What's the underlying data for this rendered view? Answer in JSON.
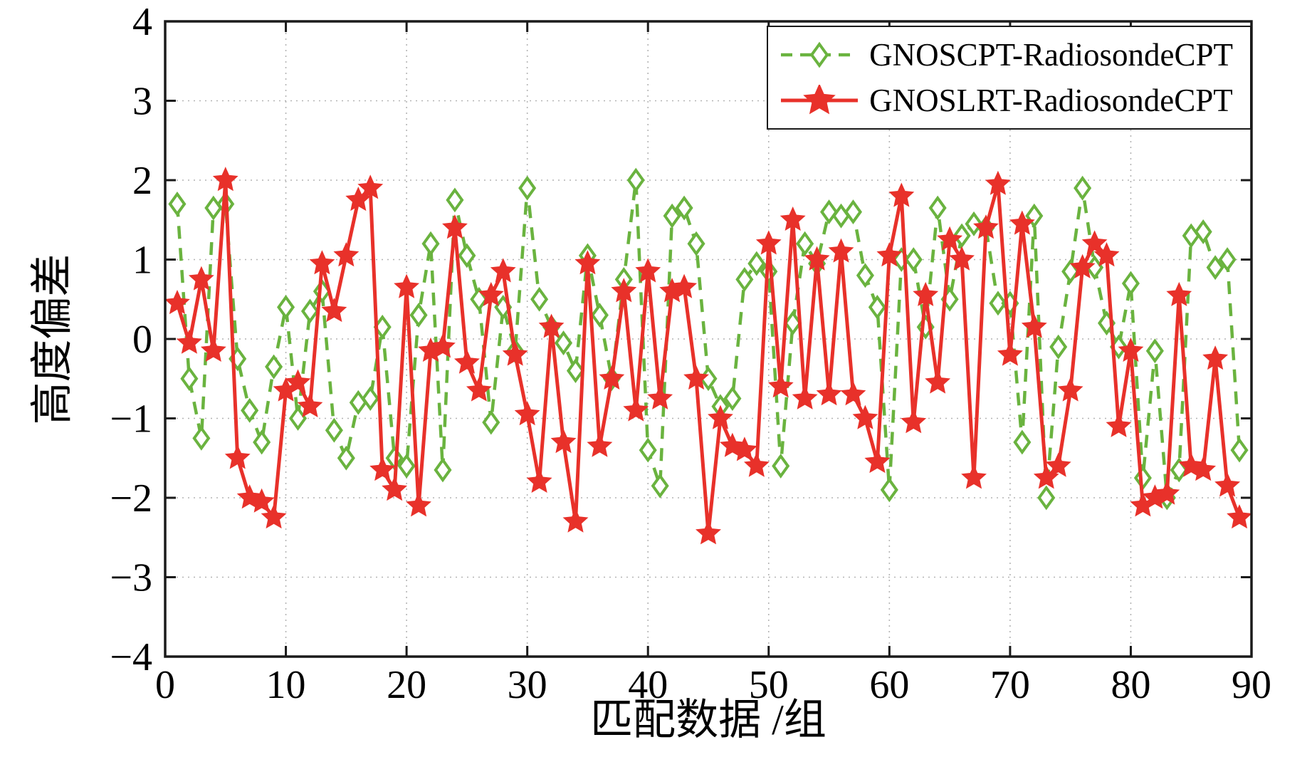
{
  "chart_data": {
    "type": "line",
    "title": "",
    "xlabel": "匹配数据 /组",
    "ylabel": "高度偏差",
    "xlim": [
      0,
      90
    ],
    "ylim": [
      -4,
      4
    ],
    "xticks": [
      0,
      10,
      20,
      30,
      40,
      50,
      60,
      70,
      80,
      90
    ],
    "yticks": [
      -4,
      -3,
      -2,
      -1,
      0,
      1,
      2,
      3,
      4
    ],
    "grid": true,
    "grid_style": "dotted",
    "legend_position": "top-right",
    "x": [
      1,
      2,
      3,
      4,
      5,
      6,
      7,
      8,
      9,
      10,
      11,
      12,
      13,
      14,
      15,
      16,
      17,
      18,
      19,
      20,
      21,
      22,
      23,
      24,
      25,
      26,
      27,
      28,
      29,
      30,
      31,
      32,
      33,
      34,
      35,
      36,
      37,
      38,
      39,
      40,
      41,
      42,
      43,
      44,
      45,
      46,
      47,
      48,
      49,
      50,
      51,
      52,
      53,
      54,
      55,
      56,
      57,
      58,
      59,
      60,
      61,
      62,
      63,
      64,
      65,
      66,
      67,
      68,
      69,
      70,
      71,
      72,
      73,
      74,
      75,
      76,
      77,
      78,
      79,
      80,
      81,
      82,
      83,
      84,
      85,
      86,
      87,
      88,
      89
    ],
    "series": [
      {
        "name": "GNOSCPT-RadiosondeCPT",
        "color": "#6ab33f",
        "line": "dashed",
        "marker": "diamond",
        "values": [
          1.7,
          -0.5,
          -1.25,
          1.65,
          1.7,
          -0.25,
          -0.9,
          -1.3,
          -0.35,
          0.4,
          -1.0,
          0.35,
          0.6,
          -1.15,
          -1.5,
          -0.8,
          -0.75,
          0.15,
          -1.5,
          -1.6,
          0.3,
          1.2,
          -1.65,
          1.75,
          1.05,
          0.5,
          -1.05,
          0.4,
          -0.15,
          1.9,
          0.5,
          0.15,
          -0.05,
          -0.4,
          1.05,
          0.3,
          -0.5,
          0.75,
          2.0,
          -1.4,
          -1.85,
          1.55,
          1.65,
          1.2,
          -0.5,
          -0.85,
          -0.75,
          0.75,
          0.95,
          0.85,
          -1.6,
          0.2,
          1.2,
          0.95,
          1.6,
          1.55,
          1.6,
          0.8,
          0.4,
          -1.9,
          1.0,
          1.0,
          0.15,
          1.65,
          0.5,
          1.3,
          1.45,
          1.4,
          0.45,
          0.45,
          -1.3,
          1.55,
          -2.0,
          -0.1,
          0.85,
          1.9,
          0.9,
          0.2,
          -0.1,
          0.7,
          -1.75,
          -0.15,
          -2.0,
          -1.65,
          1.3,
          1.35,
          0.9,
          1.0,
          -1.4
        ]
      },
      {
        "name": "GNOSLRT-RadiosondeCPT",
        "color": "#e8312a",
        "line": "solid",
        "marker": "star",
        "values": [
          0.45,
          -0.05,
          0.75,
          -0.15,
          2.0,
          -1.5,
          -2.0,
          -2.05,
          -2.25,
          -0.65,
          -0.55,
          -0.85,
          0.95,
          0.35,
          1.05,
          1.75,
          1.9,
          -1.65,
          -1.9,
          0.65,
          -2.1,
          -0.15,
          -0.1,
          1.4,
          -0.3,
          -0.65,
          0.55,
          0.85,
          -0.2,
          -0.95,
          -1.8,
          0.15,
          -1.3,
          -2.3,
          0.95,
          -1.35,
          -0.5,
          0.6,
          -0.9,
          0.85,
          -0.75,
          0.6,
          0.65,
          -0.5,
          -2.45,
          -1.0,
          -1.35,
          -1.4,
          -1.6,
          1.2,
          -0.6,
          1.5,
          -0.75,
          1.0,
          -0.7,
          1.1,
          -0.7,
          -1.0,
          -1.55,
          1.05,
          1.8,
          -1.05,
          0.55,
          -0.55,
          1.25,
          1.0,
          -1.75,
          1.4,
          1.95,
          -0.2,
          1.45,
          0.15,
          -1.75,
          -1.6,
          -0.65,
          0.9,
          1.2,
          1.05,
          -1.1,
          -0.15,
          -2.1,
          -2.0,
          -1.95,
          0.55,
          -1.6,
          -1.65,
          -0.25,
          -1.85,
          -2.25
        ]
      }
    ]
  },
  "colors": {
    "axis": "#1a1a1a",
    "grid": "#b4b4b4",
    "background": "#ffffff"
  }
}
